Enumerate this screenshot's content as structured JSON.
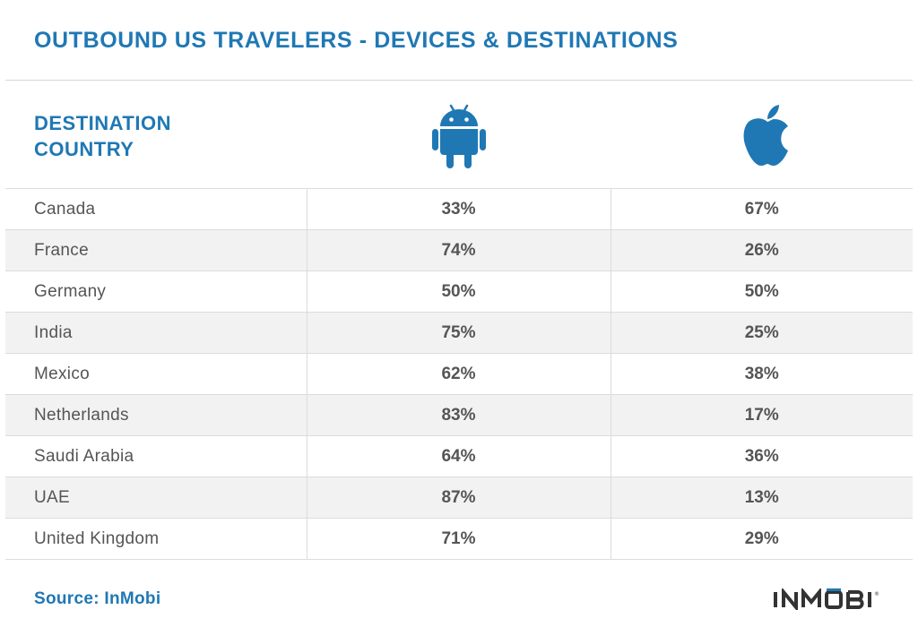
{
  "header": {
    "title": "OUTBOUND US TRAVELERS - DEVICES & DESTINATIONS"
  },
  "table": {
    "country_header": "DESTINATION\nCOUNTRY",
    "device_columns": [
      {
        "icon": "android-icon",
        "color": "#1f78b4"
      },
      {
        "icon": "apple-icon",
        "color": "#1f78b4"
      }
    ],
    "row_shading": {
      "alternate": "#f2f2f2",
      "base": "#ffffff"
    },
    "rows": [
      {
        "country": "Canada",
        "android": "33%",
        "apple": "67%"
      },
      {
        "country": "France",
        "android": "74%",
        "apple": "26%"
      },
      {
        "country": "Germany",
        "android": "50%",
        "apple": "50%"
      },
      {
        "country": "India",
        "android": "75%",
        "apple": "25%"
      },
      {
        "country": "Mexico",
        "android": "62%",
        "apple": "38%"
      },
      {
        "country": "Netherlands",
        "android": "83%",
        "apple": "17%"
      },
      {
        "country": "Saudi Arabia",
        "android": "64%",
        "apple": "36%"
      },
      {
        "country": "UAE",
        "android": "87%",
        "apple": "13%"
      },
      {
        "country": "United Kingdom",
        "android": "71%",
        "apple": "29%"
      }
    ]
  },
  "footer": {
    "source": "Source: InMobi",
    "logo_text": "INMOBI"
  },
  "chart_data": {
    "type": "table",
    "title": "OUTBOUND US TRAVELERS - DEVICES & DESTINATIONS",
    "columns": [
      "DESTINATION COUNTRY",
      "android-icon",
      "apple-icon"
    ],
    "categories": [
      "Canada",
      "France",
      "Germany",
      "India",
      "Mexico",
      "Netherlands",
      "Saudi Arabia",
      "UAE",
      "United Kingdom"
    ],
    "series": [
      {
        "values": [
          33,
          74,
          50,
          75,
          62,
          83,
          64,
          87,
          71
        ]
      },
      {
        "values": [
          67,
          26,
          50,
          25,
          38,
          17,
          36,
          13,
          29
        ]
      }
    ],
    "unit": "%"
  }
}
